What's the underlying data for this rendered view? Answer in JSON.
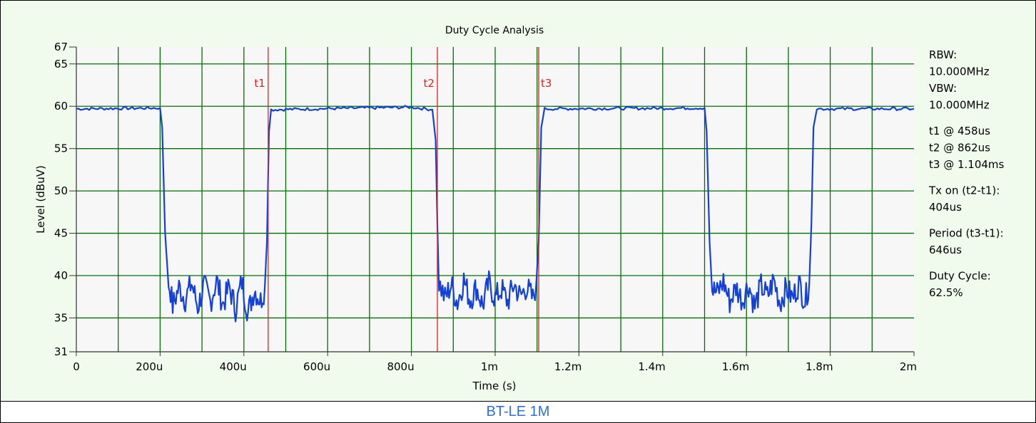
{
  "caption": "BT-LE 1M",
  "colors": {
    "panel_bg": "#f0fbee",
    "plot_bg": "#f7f7f7",
    "grid": "#007000",
    "trace": "#1340d8",
    "marker": "#e02020",
    "caption": "#2e6fdc"
  },
  "info": {
    "lines": [
      "RBW:",
      "10.000MHz",
      "VBW:",
      "10.000MHz",
      "",
      "t1 @ 458us",
      "t2 @ 862us",
      "t3 @ 1.104ms",
      "",
      "Tx on (t2-t1):",
      "404us",
      "",
      "Period (t3-t1):",
      "646us",
      "",
      "Duty Cycle:",
      "62.5%"
    ]
  },
  "chart_data": {
    "type": "line",
    "title": "Duty Cycle Analysis",
    "xlabel": "Time (s)",
    "ylabel": "Level (dBuV)",
    "xlim": [
      0,
      0.002
    ],
    "ylim": [
      31,
      67
    ],
    "grid": true,
    "x_ticks": [
      {
        "value": 0,
        "label": "0"
      },
      {
        "value": 0.0002,
        "label": "200u"
      },
      {
        "value": 0.0004,
        "label": "400u"
      },
      {
        "value": 0.0006,
        "label": "600u"
      },
      {
        "value": 0.0008,
        "label": "800u"
      },
      {
        "value": 0.001,
        "label": "1m"
      },
      {
        "value": 0.0012,
        "label": "1.2m"
      },
      {
        "value": 0.0014,
        "label": "1.4m"
      },
      {
        "value": 0.0016,
        "label": "1.6m"
      },
      {
        "value": 0.0018,
        "label": "1.8m"
      },
      {
        "value": 0.002,
        "label": "2m"
      }
    ],
    "x_minor_grid": [
      0.0004,
      0.0006,
      0.0012
    ],
    "y_ticks": [
      {
        "value": 31,
        "label": "31"
      },
      {
        "value": 35,
        "label": "35"
      },
      {
        "value": 40,
        "label": "40"
      },
      {
        "value": 45,
        "label": "45"
      },
      {
        "value": 50,
        "label": "50"
      },
      {
        "value": 55,
        "label": "55"
      },
      {
        "value": 60,
        "label": "60"
      },
      {
        "value": 65,
        "label": "65"
      },
      {
        "value": 67,
        "label": "67"
      }
    ],
    "markers": [
      {
        "label": "t1",
        "x": 0.000458
      },
      {
        "label": "t2",
        "x": 0.000862
      },
      {
        "label": "t3",
        "x": 0.001104
      }
    ],
    "series": [
      {
        "points": [
          [
            0,
            59.7
          ],
          [
            0.0002,
            59.8
          ],
          [
            0.000205,
            57.5
          ],
          [
            0.000212,
            45
          ],
          [
            0.000218,
            39.5
          ],
          [
            0.000225,
            38.2
          ],
          [
            0.00023,
            36.4
          ],
          [
            0.000245,
            38.6
          ],
          [
            0.00026,
            37.2
          ],
          [
            0.000275,
            39.1
          ],
          [
            0.00029,
            36.3
          ],
          [
            0.000305,
            38.8
          ],
          [
            0.00032,
            36.9
          ],
          [
            0.000335,
            39.4
          ],
          [
            0.00035,
            36.6
          ],
          [
            0.000365,
            38.7
          ],
          [
            0.00038,
            36.1
          ],
          [
            0.000395,
            39.3
          ],
          [
            0.00041,
            35.6
          ],
          [
            0.000425,
            38.4
          ],
          [
            0.00044,
            37.0
          ],
          [
            0.00045,
            38.6
          ],
          [
            0.000455,
            44
          ],
          [
            0.00046,
            57
          ],
          [
            0.000465,
            59.6
          ],
          [
            0.0008,
            59.9
          ],
          [
            0.00085,
            59.6
          ],
          [
            0.000858,
            56
          ],
          [
            0.000862,
            46
          ],
          [
            0.000866,
            39.2
          ],
          [
            0.00088,
            37.3
          ],
          [
            0.000895,
            38.9
          ],
          [
            0.00091,
            36.8
          ],
          [
            0.000925,
            39.5
          ],
          [
            0.00094,
            37.1
          ],
          [
            0.000955,
            38.6
          ],
          [
            0.00097,
            36.5
          ],
          [
            0.000985,
            39.1
          ],
          [
            0.001,
            37.3
          ],
          [
            0.001015,
            38.4
          ],
          [
            0.00103,
            36.9
          ],
          [
            0.001045,
            39.0
          ],
          [
            0.00106,
            37.5
          ],
          [
            0.001075,
            38.7
          ],
          [
            0.00109,
            37.2
          ],
          [
            0.001098,
            39.0
          ],
          [
            0.001104,
            44
          ],
          [
            0.00111,
            57.5
          ],
          [
            0.001118,
            59.7
          ],
          [
            0.0015,
            59.8
          ],
          [
            0.001505,
            57
          ],
          [
            0.001512,
            44
          ],
          [
            0.001518,
            38.4
          ],
          [
            0.00153,
            37.9
          ],
          [
            0.001545,
            39.3
          ],
          [
            0.00156,
            36.9
          ],
          [
            0.001575,
            38.6
          ],
          [
            0.00159,
            37.1
          ],
          [
            0.001605,
            39.0
          ],
          [
            0.00162,
            36.3
          ],
          [
            0.001635,
            38.8
          ],
          [
            0.00165,
            37.5
          ],
          [
            0.001665,
            39.5
          ],
          [
            0.00168,
            36.8
          ],
          [
            0.001695,
            38.5
          ],
          [
            0.00171,
            37.3
          ],
          [
            0.001725,
            39.1
          ],
          [
            0.00174,
            37.0
          ],
          [
            0.00175,
            39.2
          ],
          [
            0.001755,
            46
          ],
          [
            0.00176,
            57.5
          ],
          [
            0.001768,
            59.7
          ],
          [
            0.002,
            59.7
          ]
        ]
      }
    ]
  }
}
